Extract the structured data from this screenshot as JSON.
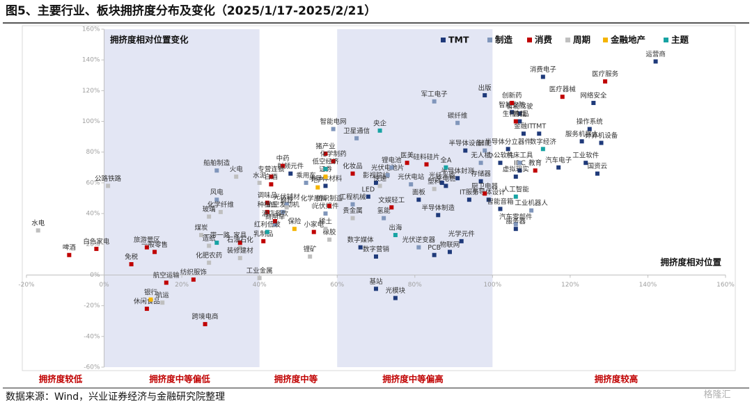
{
  "chart_data": {
    "type": "scatter",
    "title": "图5、主要行业、板块拥挤度分布及变化（2025/1/17-2025/2/21）",
    "annotations": [
      "拥挤度相对位置变化",
      "拥挤度相对位置"
    ],
    "region_labels": [
      "拥挤度较低",
      "拥挤度中等偏低",
      "拥挤度中等",
      "拥挤度中等偏高",
      "拥挤度较高"
    ],
    "source": "数据来源：Wind，兴业证券经济与金融研究院整理",
    "watermark": "格隆汇",
    "xlim": [
      -20,
      160
    ],
    "ylim": [
      -60,
      160
    ],
    "xticks": [
      {
        "value": -20,
        "label": "-20%"
      },
      {
        "value": 0,
        "label": "0%"
      },
      {
        "value": 20,
        "label": "20%"
      },
      {
        "value": 40,
        "label": "40%"
      },
      {
        "value": 60,
        "label": "60%"
      },
      {
        "value": 80,
        "label": "80%"
      },
      {
        "value": 100,
        "label": "100%"
      },
      {
        "value": 120,
        "label": "120%"
      },
      {
        "value": 140,
        "label": "140%"
      },
      {
        "value": 160,
        "label": "160%"
      }
    ],
    "yticks": [
      {
        "value": -60,
        "label": "-60%"
      },
      {
        "value": -40,
        "label": "-40%"
      },
      {
        "value": -20,
        "label": "-20%"
      },
      {
        "value": 0,
        "label": "0%"
      },
      {
        "value": 20,
        "label": "20%"
      },
      {
        "value": 40,
        "label": "40%"
      },
      {
        "value": 60,
        "label": "60%"
      },
      {
        "value": 80,
        "label": "80%"
      },
      {
        "value": 100,
        "label": "100%"
      },
      {
        "value": 120,
        "label": "120%"
      },
      {
        "value": 140,
        "label": "140%"
      },
      {
        "value": 160,
        "label": "160%"
      }
    ],
    "series": [
      {
        "name": "TMT",
        "color": "#1f3a7a",
        "labels": [
          "运营商",
          "消费电子",
          "网络安全",
          "出版",
          "智能安防",
          "智能驾驶",
          "游戏",
          "金融IT",
          "TMT",
          "操作系统",
          "服务机器人",
          "计算机设备",
          "工业软件",
          "汽车电子",
          "国资云",
          "半导体设备",
          "半导体分立器件",
          "办公软件",
          "IDC",
          "虚拟现实",
          "存储器",
          "半导体封测",
          "充电桩",
          "光纤光缆",
          "面板",
          "LED",
          "IT服务",
          "半导体设计",
          "半导体制造",
          "智能音箱",
          "服务器",
          "光学元件",
          "物联网",
          "PCB",
          "数字媒体",
          "数字营销",
          "基站",
          "光模块",
          "半导体材料",
          "射频元件",
          "影视院线"
        ],
        "x": [
          142,
          113,
          126,
          98,
          105,
          107,
          107,
          108,
          112,
          125,
          123,
          128,
          124,
          117,
          127,
          93,
          104,
          102,
          107,
          106,
          97,
          91,
          88,
          87,
          81,
          68,
          94,
          99,
          86,
          102,
          106,
          92,
          89,
          85,
          66,
          70,
          70,
          75,
          57,
          48,
          70
        ],
        "values": [
          139,
          129,
          112,
          117,
          106,
          105,
          100,
          92,
          92,
          95,
          87,
          86,
          73,
          70,
          66,
          81,
          82,
          73,
          68,
          64,
          61,
          63,
          58,
          60,
          49,
          51,
          49,
          49,
          39,
          43,
          30,
          22,
          15,
          13,
          18,
          12,
          -9,
          -15,
          58,
          66,
          60
        ]
      },
      {
        "name": "制造",
        "color": "#8096bb",
        "labels": [
          "船舶制造",
          "风电",
          "航空发动机",
          "卫星通信",
          "智能电网",
          "工程机械",
          "氢能",
          "光伏辅材",
          "光伏组件",
          "光伏电池片",
          "锂电池",
          "光伏电站",
          "碳纤维",
          "军工电子",
          "储能",
          "机床工具",
          "工业机器人",
          "汽车零部件",
          "光伏逆变器",
          "无人机",
          "乘用车",
          "商用车"
        ],
        "x": [
          29,
          29,
          46,
          65,
          59,
          64,
          72,
          47,
          57,
          73,
          74,
          79,
          91,
          85,
          98,
          107,
          110,
          106,
          81,
          97,
          52,
          44
        ],
        "values": [
          68,
          49,
          41,
          89,
          95,
          46,
          37,
          46,
          40,
          65,
          70,
          59,
          99,
          113,
          81,
          73,
          42,
          33,
          18,
          73,
          60,
          33
        ]
      },
      {
        "name": "消费",
        "color": "#c00000",
        "labels": [
          "啤酒",
          "白色家电",
          "旅游景区",
          "一般零售",
          "免税",
          "航空运输",
          "纺织服饰",
          "休闲食品",
          "跨境电商",
          "中药",
          "专营连锁",
          "白酒",
          "调味品",
          "种植业",
          "酒店餐饮",
          "乳制品",
          "家具",
          "小家电",
          "纺织制造",
          "猪产业",
          "化学制药",
          "化妆品",
          "文娱轻工",
          "医美",
          "硅料硅片",
          "厨卫电器",
          "教育",
          "生物制品",
          "创新药",
          "医疗器械",
          "医疗服务"
        ],
        "x": [
          -9,
          -2,
          11,
          13,
          7,
          16,
          23,
          11,
          26,
          46,
          43,
          43,
          42,
          42,
          44,
          41,
          35,
          54,
          58,
          57,
          59,
          64,
          74,
          78,
          83,
          98,
          111,
          106,
          105,
          118,
          129
        ],
        "values": [
          13,
          17,
          18,
          15,
          7,
          -5,
          -3,
          -22,
          -32,
          71,
          64,
          59,
          47,
          41,
          35,
          22,
          21,
          28,
          45,
          79,
          74,
          66,
          44,
          73,
          72,
          53,
          68,
          100,
          112,
          116,
          126
        ]
      },
      {
        "name": "周期",
        "color": "#bfbfbf",
        "labels": [
          "水电",
          "公路铁路",
          "航运",
          "煤炭",
          "化肥农药",
          "造纸",
          "化学纤维",
          "玻璃",
          "火电",
          "水泥",
          "钢铁",
          "石油石化",
          "装修建材",
          "工业金属",
          "锂矿",
          "橡胶",
          "稀土",
          "贵金属",
          "塑料",
          "化学原料",
          "快递"
        ],
        "x": [
          -17,
          1,
          15,
          25,
          27,
          27,
          30,
          27,
          34,
          40,
          47,
          35,
          35,
          40,
          53,
          58,
          57,
          64,
          85,
          54,
          71
        ],
        "values": [
          29,
          58,
          -18,
          26,
          8,
          19,
          41,
          38,
          64,
          60,
          44,
          18,
          11,
          -2,
          12,
          23,
          30,
          37,
          56,
          45,
          58
        ]
      },
      {
        "name": "金融地产",
        "color": "#f5b400",
        "labels": [
          "银行",
          "保险",
          "地产",
          "证券"
        ],
        "x": [
          12,
          49,
          55,
          57
        ],
        "values": [
          -16,
          30,
          57,
          64
        ]
      },
      {
        "name": "主题",
        "color": "#17a3a3",
        "labels": [
          "一带一路",
          "红利低波",
          "低空经济",
          "央企",
          "出海",
          "全A",
          "人工智能",
          "数字经济"
        ],
        "x": [
          29,
          42,
          57,
          71,
          75,
          88,
          106,
          113
        ],
        "values": [
          21,
          28,
          69,
          94,
          26,
          70,
          51,
          82
        ]
      }
    ]
  }
}
